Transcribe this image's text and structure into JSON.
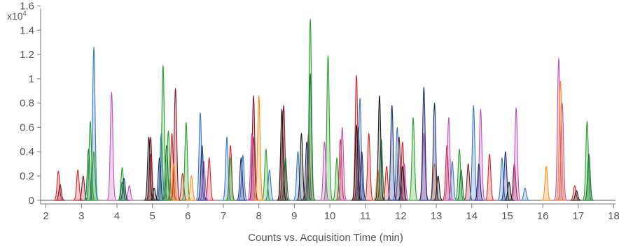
{
  "chart_data": {
    "type": "line",
    "xlabel": "Counts vs. Acquisition Time (min)",
    "ylabel_prefix": "x10",
    "ylabel_exponent": "4",
    "xlim": [
      1.85,
      18.05
    ],
    "ylim": [
      -0.03,
      1.58
    ],
    "x_ticks": [
      "2",
      "3",
      "4",
      "5",
      "6",
      "7",
      "8",
      "9",
      "10",
      "11",
      "12",
      "13",
      "14",
      "15",
      "16",
      "17",
      "18"
    ],
    "y_ticks": [
      "0",
      "0.2",
      "0.4",
      "0.6",
      "0.8",
      "1",
      "1.2",
      "1.4",
      "1.6"
    ],
    "grid": false,
    "fill_opacity": 0.25,
    "series": [
      {
        "color": "#d62728",
        "peaks": [
          [
            2.35,
            0.24
          ],
          [
            2.9,
            0.25
          ],
          [
            4.95,
            0.38
          ],
          [
            5.55,
            0.55
          ],
          [
            5.85,
            0.22
          ],
          [
            6.6,
            0.35
          ],
          [
            7.2,
            0.45
          ],
          [
            7.85,
            0.52
          ],
          [
            8.65,
            0.72
          ],
          [
            9.4,
            0.55
          ],
          [
            10.3,
            0.5
          ],
          [
            10.75,
            1.03
          ],
          [
            11.1,
            0.55
          ],
          [
            11.6,
            0.28
          ],
          [
            12.05,
            0.48
          ],
          [
            13.3,
            0.45
          ],
          [
            14.5,
            0.38
          ],
          [
            16.9,
            0.12
          ]
        ]
      },
      {
        "color": "#8b1a2b",
        "peaks": [
          [
            2.4,
            0.13
          ],
          [
            3.05,
            0.2
          ],
          [
            4.95,
            0.52
          ],
          [
            5.65,
            0.92
          ],
          [
            7.85,
            0.86
          ],
          [
            8.7,
            0.78
          ],
          [
            10.8,
            0.6
          ],
          [
            11.95,
            0.52
          ],
          [
            13.9,
            0.3
          ],
          [
            15.2,
            0.3
          ]
        ]
      },
      {
        "color": "#3a7abf",
        "peaks": [
          [
            3.35,
            1.26
          ],
          [
            5.25,
            0.55
          ],
          [
            6.35,
            0.72
          ],
          [
            7.1,
            0.52
          ],
          [
            7.55,
            0.37
          ],
          [
            8.3,
            0.25
          ],
          [
            9.1,
            0.4
          ],
          [
            10.85,
            0.84
          ],
          [
            11.9,
            0.6
          ],
          [
            13.45,
            0.32
          ],
          [
            14.05,
            0.78
          ],
          [
            14.85,
            0.35
          ],
          [
            15.5,
            0.1
          ]
        ]
      },
      {
        "color": "#2ca02c",
        "peaks": [
          [
            3.25,
            0.65
          ],
          [
            3.35,
            0.4
          ],
          [
            4.15,
            0.27
          ],
          [
            5.3,
            1.11
          ],
          [
            5.45,
            0.57
          ],
          [
            5.95,
            0.64
          ],
          [
            7.2,
            0.35
          ],
          [
            8.2,
            0.42
          ],
          [
            9.45,
            1.49
          ],
          [
            9.95,
            1.19
          ],
          [
            10.2,
            0.35
          ],
          [
            12.35,
            0.68
          ],
          [
            13.65,
            0.42
          ],
          [
            17.25,
            0.65
          ],
          [
            17.3,
            0.38
          ]
        ]
      },
      {
        "color": "#c054b5",
        "peaks": [
          [
            3.85,
            0.89
          ],
          [
            4.35,
            0.12
          ],
          [
            6.45,
            0.32
          ],
          [
            7.8,
            0.55
          ],
          [
            9.85,
            0.48
          ],
          [
            10.35,
            0.6
          ],
          [
            12.1,
            0.3
          ],
          [
            12.65,
            0.55
          ],
          [
            13.35,
            0.68
          ],
          [
            14.25,
            0.75
          ],
          [
            15.25,
            0.76
          ],
          [
            16.45,
            1.17
          ],
          [
            16.55,
            0.8
          ]
        ]
      },
      {
        "color": "#ff8c1a",
        "peaks": [
          [
            5.6,
            0.3
          ],
          [
            6.1,
            0.2
          ],
          [
            8.0,
            0.86
          ],
          [
            11.35,
            0.25
          ],
          [
            12.95,
            0.3
          ],
          [
            16.1,
            0.28
          ],
          [
            16.5,
            0.98
          ]
        ]
      },
      {
        "color": "#1f2f80",
        "peaks": [
          [
            4.2,
            0.18
          ],
          [
            5.2,
            0.35
          ],
          [
            6.4,
            0.45
          ],
          [
            7.5,
            0.35
          ],
          [
            9.35,
            0.48
          ],
          [
            10.9,
            0.4
          ],
          [
            11.75,
            0.78
          ],
          [
            12.65,
            0.93
          ],
          [
            12.95,
            0.8
          ],
          [
            14.2,
            0.3
          ],
          [
            14.95,
            0.4
          ]
        ]
      },
      {
        "color": "#1a7a3c",
        "peaks": [
          [
            3.2,
            0.42
          ],
          [
            4.15,
            0.15
          ],
          [
            5.4,
            0.45
          ],
          [
            8.75,
            0.35
          ],
          [
            9.45,
            1.04
          ],
          [
            11.45,
            0.5
          ],
          [
            13.7,
            0.25
          ],
          [
            17.3,
            0.38
          ]
        ]
      },
      {
        "color": "#1a1a1a",
        "peaks": [
          [
            4.9,
            0.52
          ],
          [
            5.05,
            0.1
          ],
          [
            8.65,
            0.75
          ],
          [
            9.2,
            0.55
          ],
          [
            10.75,
            0.62
          ],
          [
            11.4,
            0.86
          ],
          [
            12.05,
            0.28
          ],
          [
            13.05,
            0.2
          ],
          [
            15.05,
            0.15
          ],
          [
            16.95,
            0.08
          ]
        ]
      }
    ]
  }
}
